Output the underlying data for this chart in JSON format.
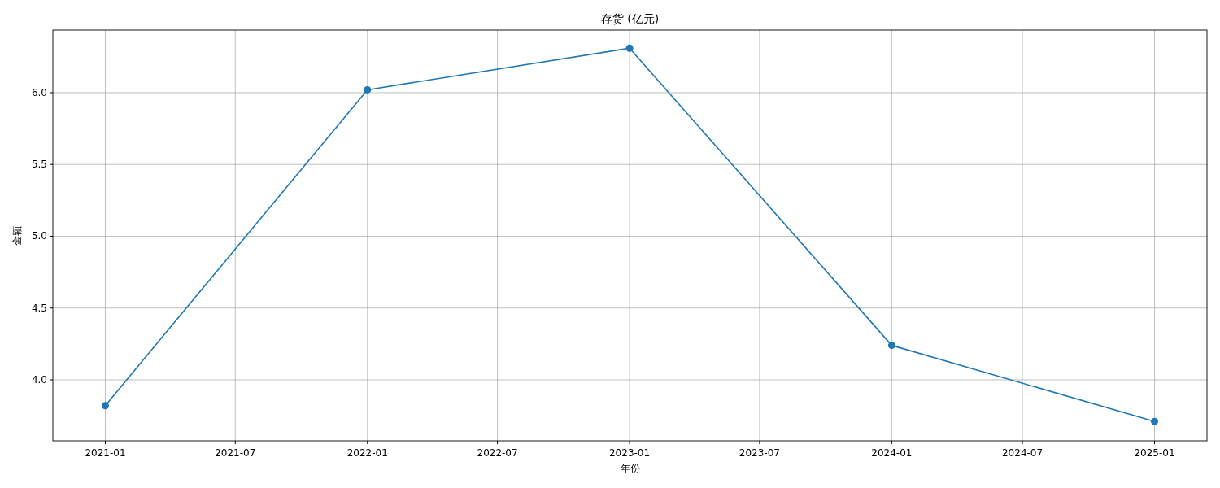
{
  "chart_data": {
    "type": "line",
    "title": "存货 (亿元)",
    "xlabel": "年份",
    "ylabel": "金额",
    "x": [
      "2021-01",
      "2022-01",
      "2023-01",
      "2024-01",
      "2025-01"
    ],
    "series": [
      {
        "color": "#1f77b4",
        "values": [
          3.82,
          6.02,
          6.31,
          4.24,
          3.71
        ]
      }
    ],
    "xlim": [
      "2020-10-20",
      "2025-03-15"
    ],
    "xticks": [
      {
        "value": "2021-01",
        "label": "2021-01"
      },
      {
        "value": "2021-07",
        "label": "2021-07"
      },
      {
        "value": "2022-01",
        "label": "2022-01"
      },
      {
        "value": "2022-07",
        "label": "2022-07"
      },
      {
        "value": "2023-01",
        "label": "2023-01"
      },
      {
        "value": "2023-07",
        "label": "2023-07"
      },
      {
        "value": "2024-01",
        "label": "2024-01"
      },
      {
        "value": "2024-07",
        "label": "2024-07"
      },
      {
        "value": "2025-01",
        "label": "2025-01"
      }
    ],
    "ylim": [
      3.575,
      6.436
    ],
    "yticks": [
      {
        "value": 4,
        "label": "4.0"
      },
      {
        "value": 4.5,
        "label": "4.5"
      },
      {
        "value": 5,
        "label": "5.0"
      },
      {
        "value": 5.5,
        "label": "5.5"
      },
      {
        "value": 6,
        "label": "6.0"
      }
    ],
    "grid": true,
    "marker": "circle",
    "line_style": "solid"
  }
}
